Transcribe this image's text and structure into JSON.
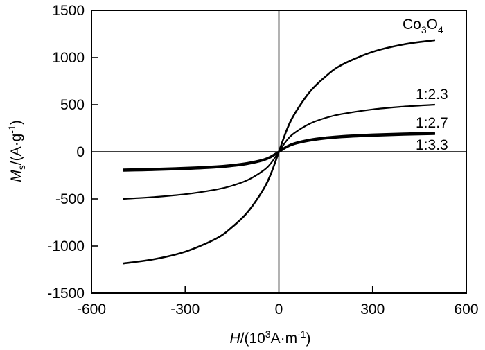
{
  "chart_data": {
    "type": "line",
    "title": "",
    "xlabel": {
      "italic": "H",
      "rest": "/(10",
      "sup": "3",
      "rest2": "A·m",
      "sup2": "-1",
      "close": ")"
    },
    "ylabel": {
      "italic": "M",
      "sub": "s",
      "rest": "/(A·g",
      "sup": "-1",
      "close": ")"
    },
    "xlim": [
      -600,
      600
    ],
    "ylim": [
      -1500,
      1500
    ],
    "xticks": [
      -600,
      -300,
      0,
      300,
      600
    ],
    "xtick_labels": [
      "-600",
      "-300",
      "0",
      "300",
      "600"
    ],
    "yticks": [
      -1500,
      -1000,
      -500,
      0,
      500,
      1000,
      1500
    ],
    "ytick_labels": [
      "-1500",
      "-1000",
      "-500",
      "0",
      "500",
      "1000",
      "1500"
    ],
    "grid": false,
    "series": [
      {
        "name_parts": [
          [
            "Co",
            ""
          ],
          [
            "3",
            "sub"
          ],
          [
            "O",
            ""
          ],
          [
            "4",
            "sub"
          ]
        ],
        "x": [
          -500,
          -400,
          -300,
          -200,
          -150,
          -100,
          -50,
          -25,
          0,
          25,
          50,
          100,
          150,
          200,
          300,
          400,
          500
        ],
        "y": [
          -1185,
          -1140,
          -1060,
          -920,
          -800,
          -640,
          -400,
          -230,
          0,
          230,
          400,
          640,
          800,
          920,
          1060,
          1140,
          1185
        ]
      },
      {
        "name_parts": [
          [
            "1:2.3",
            ""
          ]
        ],
        "x": [
          -500,
          -400,
          -300,
          -200,
          -150,
          -100,
          -50,
          -25,
          0,
          25,
          50,
          100,
          150,
          200,
          300,
          400,
          500
        ],
        "y": [
          -500,
          -480,
          -450,
          -400,
          -360,
          -300,
          -200,
          -120,
          0,
          120,
          200,
          300,
          360,
          400,
          450,
          480,
          500
        ]
      },
      {
        "name_parts": [
          [
            "1:2.7",
            ""
          ]
        ],
        "x": [
          -500,
          -400,
          -300,
          -200,
          -150,
          -100,
          -50,
          -25,
          0,
          25,
          50,
          100,
          150,
          200,
          300,
          400,
          500
        ],
        "y": [
          -200,
          -193,
          -182,
          -165,
          -150,
          -128,
          -90,
          -55,
          0,
          55,
          90,
          128,
          150,
          165,
          182,
          193,
          200
        ]
      },
      {
        "name_parts": [
          [
            "1:3.3",
            ""
          ]
        ],
        "x": [
          -500,
          -400,
          -300,
          -200,
          -150,
          -100,
          -50,
          -25,
          0,
          25,
          50,
          100,
          150,
          200,
          300,
          400,
          500
        ],
        "y": [
          -190,
          -183,
          -172,
          -156,
          -142,
          -120,
          -84,
          -50,
          0,
          50,
          84,
          120,
          142,
          156,
          172,
          183,
          190
        ]
      }
    ]
  }
}
